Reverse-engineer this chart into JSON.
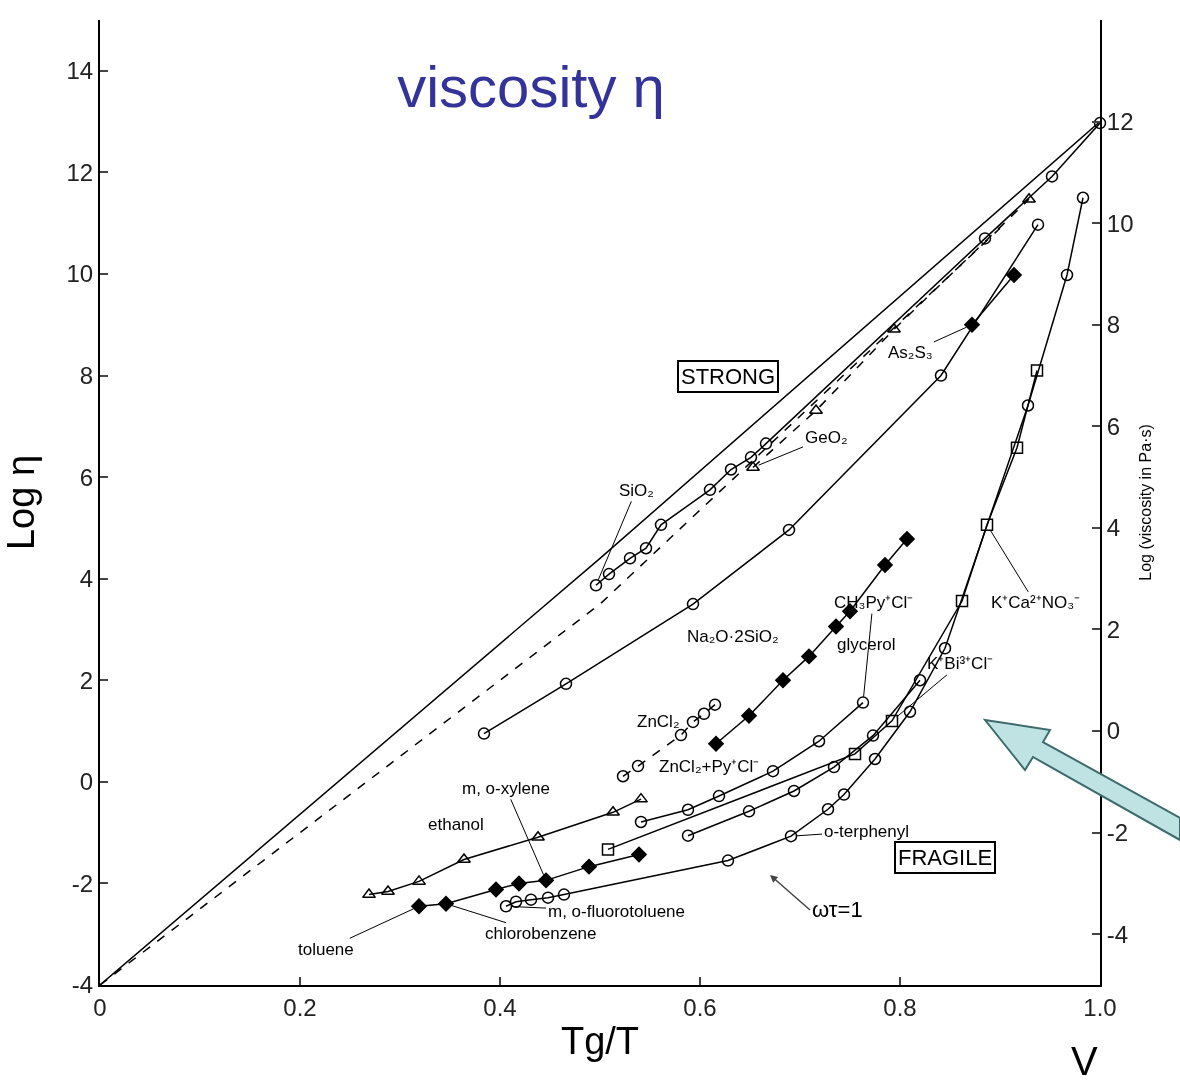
{
  "chart_data": {
    "type": "line",
    "title": "viscosity η",
    "xlabel": "Tg/T",
    "ylabel": "Log η",
    "y2label": "Log (viscosity in Pa·s)",
    "xlim": [
      0,
      1
    ],
    "xticks": [
      0,
      0.2,
      0.4,
      0.6,
      0.8,
      {
        "value": 1,
        "label": "1.0"
      }
    ],
    "ylim": [
      -4,
      15
    ],
    "yticks": [
      -4,
      -2,
      0,
      2,
      4,
      6,
      8,
      10,
      12,
      14
    ],
    "y2lim": [
      -5,
      14
    ],
    "y2ticks": [
      -4,
      -2,
      0,
      2,
      4,
      6,
      8,
      10,
      12
    ],
    "grid": false,
    "series": [
      {
        "color": "#000000",
        "marker": "none",
        "line_style": "solid",
        "x": [
          0,
          0.5,
          1
        ],
        "values": [
          -4,
          4.4,
          13
        ]
      },
      {
        "color": "#000000",
        "marker": "circle",
        "line_style": "solid",
        "x": [
          0.496,
          0.509,
          0.53,
          0.546,
          0.561,
          0.61,
          0.631,
          0.651,
          0.666,
          0.885,
          0.952,
          1
        ],
        "values": [
          3.87,
          4.09,
          4.4,
          4.6,
          5.06,
          5.75,
          6.15,
          6.39,
          6.66,
          10.7,
          11.92,
          12.97
        ]
      },
      {
        "color": "#000000",
        "marker": "none",
        "line_style": "dashed",
        "x": [
          0,
          0.5,
          0.9
        ],
        "values": [
          -4,
          3.5,
          10.9
        ]
      },
      {
        "color": "#000000",
        "marker": "triangle",
        "line_style": "dashed",
        "x": [
          0.653,
          0.716,
          0.794,
          0.929
        ],
        "values": [
          6.19,
          7.31,
          8.91,
          11.47
        ]
      },
      {
        "color": "#000000",
        "marker": "diamond",
        "line_style": "solid",
        "x": [
          0.872,
          0.914
        ],
        "values": [
          9,
          9.98
        ]
      },
      {
        "color": "#000000",
        "marker": "circle",
        "line_style": "solid",
        "x": [
          0.384,
          0.466,
          0.593,
          0.689,
          0.841,
          0.938
        ],
        "values": [
          0.95,
          1.93,
          3.5,
          4.96,
          8,
          10.97
        ]
      },
      {
        "color": "#000000",
        "marker": "circle",
        "line_style": "dashed",
        "x": [
          0.523,
          0.538,
          0.581,
          0.593,
          0.604,
          0.615
        ],
        "values": [
          0.11,
          0.31,
          0.92,
          1.18,
          1.34,
          1.52
        ]
      },
      {
        "color": "#000000",
        "marker": "diamond",
        "line_style": "solid",
        "x": [
          0.616,
          0.649,
          0.683,
          0.709,
          0.736,
          0.75,
          0.785,
          0.807
        ],
        "values": [
          0.75,
          1.3,
          2,
          2.47,
          3.06,
          3.36,
          4.27,
          4.78
        ]
      },
      {
        "color": "#000000",
        "marker": "circle",
        "line_style": "solid",
        "x": [
          0.541,
          0.588,
          0.619,
          0.673,
          0.719,
          0.763
        ],
        "values": [
          -0.79,
          -0.55,
          -0.28,
          0.21,
          0.8,
          1.56
        ]
      },
      {
        "color": "#000000",
        "marker": "circle",
        "line_style": "solid",
        "x": [
          0.588,
          0.649,
          0.694,
          0.734,
          0.773,
          0.82
        ],
        "values": [
          -1.06,
          -0.58,
          -0.18,
          0.29,
          0.91,
          2
        ]
      },
      {
        "color": "#000000",
        "marker": "square",
        "line_style": "solid",
        "x": [
          0.508,
          0.755,
          0.792,
          0.862,
          0.887,
          0.917,
          0.937
        ],
        "values": [
          -1.33,
          0.55,
          1.2,
          3.56,
          5.06,
          6.58,
          8.1
        ]
      },
      {
        "color": "#000000",
        "marker": "circle",
        "line_style": "solid",
        "x": [
          0.406,
          0.416,
          0.431,
          0.448,
          0.464,
          0.628,
          0.691,
          0.728,
          0.744,
          0.775,
          0.81,
          0.845,
          0.928,
          0.967,
          0.983
        ],
        "values": [
          -2.45,
          -2.36,
          -2.32,
          -2.28,
          -2.22,
          -1.55,
          -1.07,
          -0.54,
          -0.25,
          0.45,
          1.38,
          2.63,
          7.41,
          9.98,
          11.5
        ]
      },
      {
        "color": "#000000",
        "marker": "triangle",
        "line_style": "solid",
        "x": [
          0.269,
          0.288,
          0.319,
          0.364,
          0.438,
          0.513,
          0.541
        ],
        "values": [
          -2.22,
          -2.16,
          -1.96,
          -1.53,
          -1.09,
          -0.6,
          -0.34
        ]
      },
      {
        "color": "#000000",
        "marker": "diamond",
        "line_style": "solid",
        "x": [
          0.319,
          0.346,
          0.396,
          0.419,
          0.446,
          0.489,
          0.539
        ],
        "values": [
          -2.45,
          -2.4,
          -2.12,
          -2,
          -1.94,
          -1.67,
          -1.43
        ]
      }
    ],
    "annotations": [
      {
        "text": "SiO₂",
        "x": 0.496,
        "y": 3.87
      },
      {
        "text": "GeO₂",
        "x": 0.653,
        "y": 6.19
      },
      {
        "text": "As₂S₃",
        "x": 0.872,
        "y": 9
      },
      {
        "text": "Na₂O·2SiO₂",
        "x": 0.593,
        "y": 3.5
      },
      {
        "text": "ZnCl₂",
        "x": 0.538,
        "y": 0.31
      },
      {
        "text": "glycerol",
        "x": 0.736,
        "y": 3.06
      },
      {
        "text": "CH₃Py⁺Cl⁻",
        "x": 0.763,
        "y": 1.56
      },
      {
        "text": "ZnCl₂+Py⁺Cl⁻",
        "x": 0.619,
        "y": -0.28
      },
      {
        "text": "K⁺Bi³⁺Cl⁻",
        "x": 0.792,
        "y": 1.2
      },
      {
        "text": "K⁺Ca²⁺NO₃⁻",
        "x": 0.887,
        "y": 5.06
      },
      {
        "text": "o-terphenyl",
        "x": 0.691,
        "y": -1.07
      },
      {
        "text": "m, o-xylene",
        "x": 0.446,
        "y": -1.94
      },
      {
        "text": "ethanol",
        "x": 0.364,
        "y": -1.53
      },
      {
        "text": "m, o-fluorotoluene",
        "x": 0.406,
        "y": -2.45
      },
      {
        "text": "chlorobenzene",
        "x": 0.346,
        "y": -2.4
      },
      {
        "text": "toluene",
        "x": 0.319,
        "y": -2.45
      },
      "ωτ=1",
      "STRONG",
      "FRAGILE",
      "V"
    ]
  }
}
